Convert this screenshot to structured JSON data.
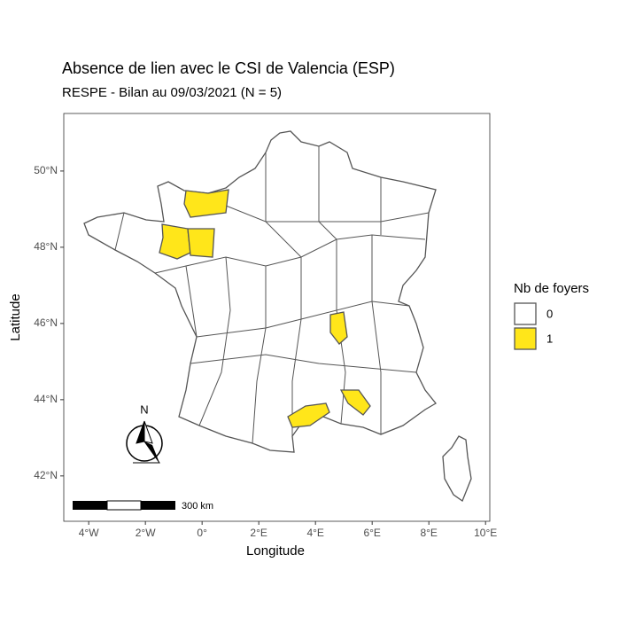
{
  "chart_data": {
    "type": "map",
    "title": "Absence de lien avec le CSI de Valencia (ESP)",
    "subtitle": "RESPE - Bilan au 09/03/2021 (N = 5)",
    "x_label": "Longitude",
    "y_label": "Latitude",
    "xlim": [
      -4.88,
      10.15
    ],
    "ylim": [
      40.81,
      51.51
    ],
    "xticks": [
      {
        "value": -4,
        "label": "4°W"
      },
      {
        "value": -2,
        "label": "2°W"
      },
      {
        "value": 0,
        "label": "0°"
      },
      {
        "value": 2,
        "label": "2°E"
      },
      {
        "value": 4,
        "label": "4°E"
      },
      {
        "value": 6,
        "label": "6°E"
      },
      {
        "value": 8,
        "label": "8°E"
      },
      {
        "value": 10,
        "label": "10°E"
      }
    ],
    "yticks": [
      {
        "value": 42,
        "label": "42°N"
      },
      {
        "value": 44,
        "label": "44°N"
      },
      {
        "value": 46,
        "label": "46°N"
      },
      {
        "value": 48,
        "label": "48°N"
      },
      {
        "value": 50,
        "label": "50°N"
      }
    ],
    "grid": false,
    "legend": {
      "title": "Nb de foyers",
      "categories": [
        0,
        1
      ],
      "colors": [
        "#ffffff",
        "#ffe61a"
      ]
    },
    "north_label": "N",
    "scale_label": "300 km"
  }
}
